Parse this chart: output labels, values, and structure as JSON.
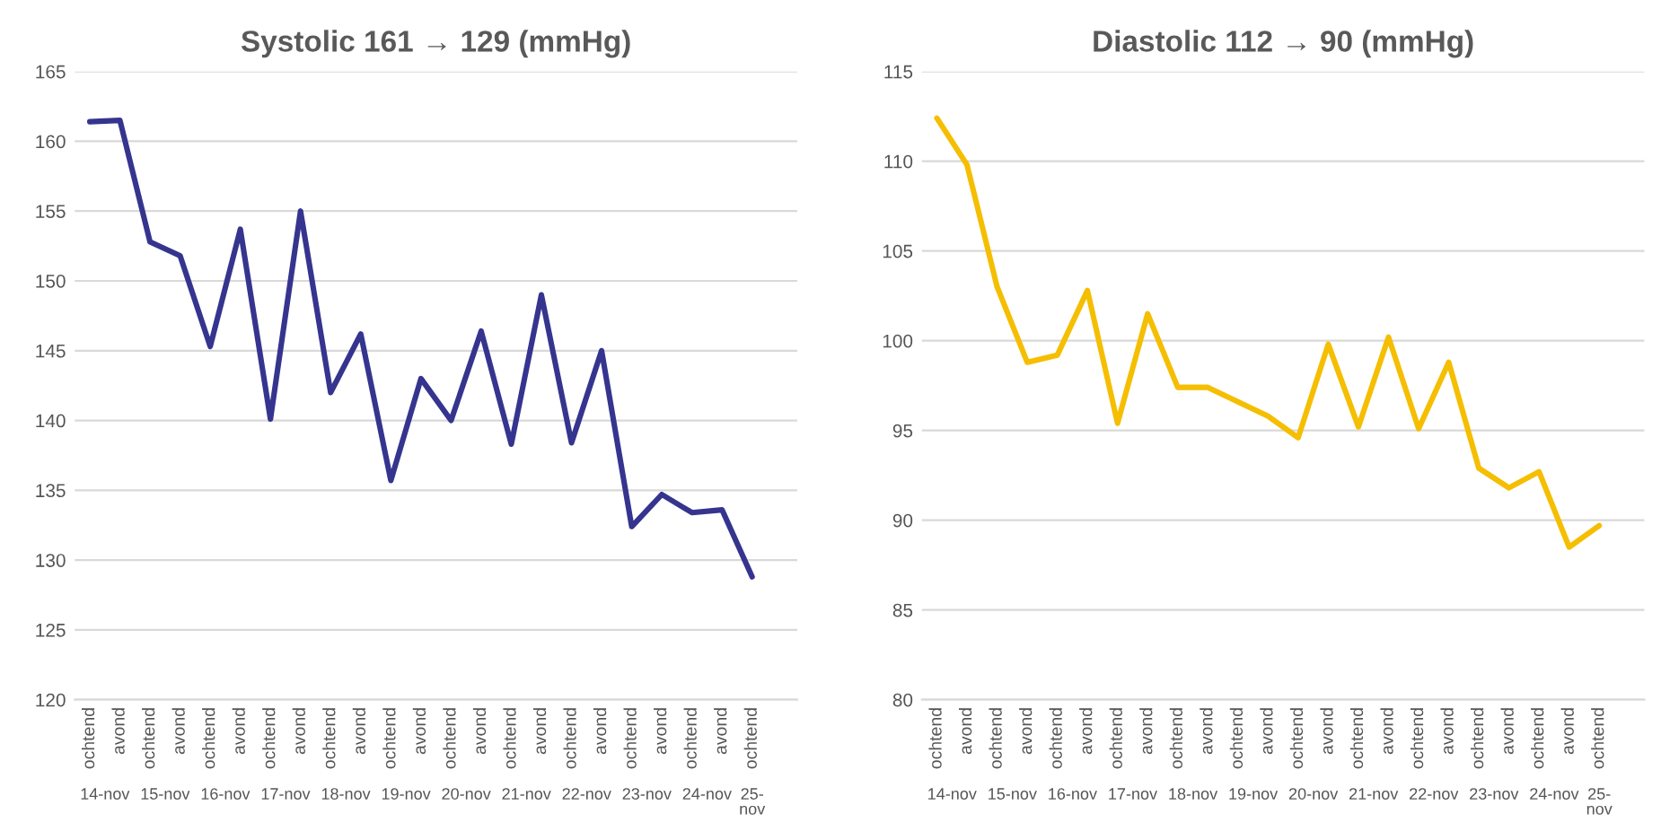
{
  "chart_data": [
    {
      "type": "line",
      "title": "Systolic 161 → 129 (mmHg)",
      "categories": [
        "ochtend",
        "avond",
        "ochtend",
        "avond",
        "ochtend",
        "avond",
        "ochtend",
        "avond",
        "ochtend",
        "avond",
        "ochtend",
        "avond",
        "ochtend",
        "avond",
        "ochtend",
        "avond",
        "ochtend",
        "avond",
        "ochtend",
        "avond",
        "ochtend",
        "avond",
        "ochtend"
      ],
      "series": [
        {
          "color": "#35358f",
          "values": [
            161.4,
            161.5,
            152.8,
            151.8,
            145.3,
            153.7,
            140.1,
            155.0,
            142.0,
            146.2,
            135.7,
            143.0,
            140.0,
            146.4,
            138.3,
            149.0,
            138.4,
            145.0,
            132.4,
            134.7,
            133.4,
            133.6,
            128.8
          ]
        }
      ],
      "ylim": [
        120,
        165
      ],
      "yticks": [
        120,
        125,
        130,
        135,
        140,
        145,
        150,
        155,
        160,
        165
      ],
      "grid": "y",
      "annotations": [
        "14-nov",
        "15-nov",
        "16-nov",
        "17-nov",
        "18-nov",
        "19-nov",
        "20-nov",
        "21-nov",
        "22-nov",
        "23-nov",
        "24-nov",
        "25-nov"
      ]
    },
    {
      "type": "line",
      "title": "Diastolic 112 → 90 (mmHg)",
      "categories": [
        "ochtend",
        "avond",
        "ochtend",
        "avond",
        "ochtend",
        "avond",
        "ochtend",
        "avond",
        "ochtend",
        "avond",
        "ochtend",
        "avond",
        "ochtend",
        "avond",
        "ochtend",
        "avond",
        "ochtend",
        "avond",
        "ochtend",
        "avond",
        "ochtend",
        "avond",
        "ochtend"
      ],
      "series": [
        {
          "color": "#f5be00",
          "values": [
            112.4,
            109.8,
            103.0,
            98.8,
            99.2,
            102.8,
            95.4,
            101.5,
            97.4,
            97.4,
            96.6,
            95.8,
            94.6,
            99.8,
            95.2,
            100.2,
            95.1,
            98.8,
            92.9,
            91.8,
            92.7,
            88.5,
            89.7
          ]
        }
      ],
      "ylim": [
        80,
        115
      ],
      "yticks": [
        80,
        85,
        90,
        95,
        100,
        105,
        110,
        115
      ],
      "grid": "y",
      "annotations": [
        "14-nov",
        "15-nov",
        "16-nov",
        "17-nov",
        "18-nov",
        "19-nov",
        "20-nov",
        "21-nov",
        "22-nov",
        "23-nov",
        "24-nov",
        "25-nov"
      ]
    }
  ]
}
